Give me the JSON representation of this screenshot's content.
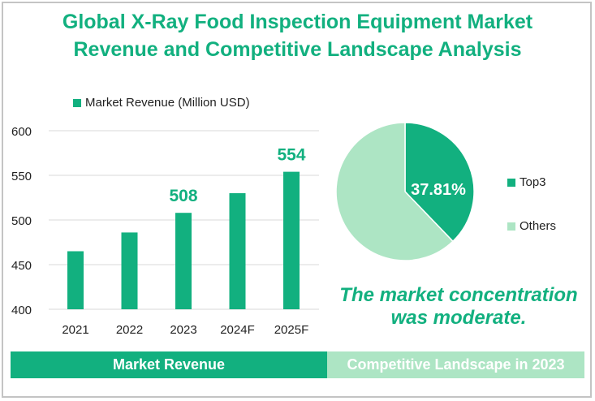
{
  "title": {
    "line1": "Global X-Ray Food Inspection Equipment Market",
    "line2": "Revenue and Competitive Landscape Analysis"
  },
  "colors": {
    "primary": "#12b07f",
    "light": "#ade5c4",
    "grid": "#d9d9d9"
  },
  "chart_data": [
    {
      "type": "bar",
      "title": "",
      "legend": "Market Revenue (Million USD)",
      "legend_position": "top",
      "categories": [
        "2021",
        "2022",
        "2023",
        "2024F",
        "2025F"
      ],
      "values": [
        465,
        486,
        508,
        530,
        554
      ],
      "data_labels": {
        "2": "508",
        "4": "554"
      },
      "yticks": [
        "400",
        "450",
        "500",
        "550",
        "600"
      ],
      "ylim": [
        400,
        600
      ],
      "grid": true,
      "xlabel": "",
      "ylabel": ""
    },
    {
      "type": "pie",
      "labels": [
        "Top3",
        "Others"
      ],
      "values": [
        37.81,
        62.19
      ],
      "data_label": "37.81%",
      "legend_position": "right"
    }
  ],
  "note": {
    "line1": "The market concentration",
    "line2": "was moderate."
  },
  "bands": {
    "left": "Market Revenue",
    "right": "Competitive Landscape in 2023"
  }
}
